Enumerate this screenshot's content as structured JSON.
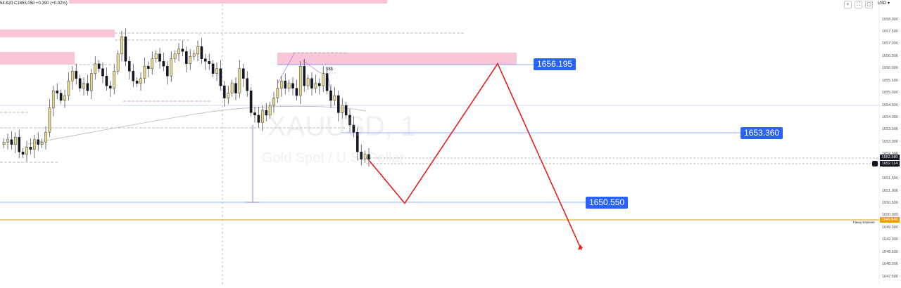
{
  "header": {
    "ohlc_text": "54.620 C1655.050 +0.390 (+0.02%)",
    "currency": "USD ▾",
    "window_buttons": [
      "+",
      "⛶",
      "▢"
    ]
  },
  "watermark": {
    "symbol": "XAUUSD, 1",
    "description": "Gold Spot / U.S. Dollar"
  },
  "annotations": {
    "sss_label": "$$$",
    "key_level_label": "Fakey Keylevel"
  },
  "colors": {
    "zone_pink": "#f9c5d8",
    "level_blue": "#2962ff",
    "key_level_gold": "#f29b0e",
    "projection_red": "#e81c1c",
    "candle_black": "#131722",
    "candle_yellow": "#e8d989"
  },
  "chart_data": {
    "type": "candlestick",
    "symbol": "XAUUSD",
    "timeframe": "1",
    "ylim": [
      1647.5,
      1658.5
    ],
    "yticks": [
      "1647.500",
      "1648.000",
      "1648.500",
      "1649.000",
      "1649.500",
      "1650.000",
      "1650.500",
      "1651.000",
      "1651.500",
      "1652.000",
      "1652.500",
      "1653.000",
      "1653.500",
      "1654.000",
      "1654.500",
      "1655.000",
      "1655.500",
      "1656.000",
      "1656.500",
      "1657.000",
      "1657.500",
      "1658.000"
    ],
    "price_levels": [
      {
        "label": "1656.195",
        "value": 1656.195
      },
      {
        "label": "1653.360",
        "value": 1653.36
      },
      {
        "label": "1650.550",
        "value": 1650.55
      }
    ],
    "key_level": {
      "label": "1649.840",
      "value": 1649.84
    },
    "current_prices": [
      "1652.380",
      "1652.114"
    ],
    "projected_path": [
      1652.3,
      1650.5,
      1656.2,
      1648.6
    ],
    "candles_close": [
      1653.0,
      1653.1,
      1652.9,
      1653.2,
      1652.6,
      1652.5,
      1652.8,
      1652.7,
      1653.1,
      1652.9,
      1653.0,
      1653.4,
      1654.4,
      1655.1,
      1655.0,
      1654.7,
      1654.9,
      1655.5,
      1655.9,
      1655.6,
      1655.2,
      1655.4,
      1655.1,
      1655.8,
      1656.2,
      1656.0,
      1655.7,
      1655.3,
      1655.2,
      1655.9,
      1656.6,
      1657.3,
      1656.3,
      1655.9,
      1655.5,
      1655.4,
      1655.6,
      1656.1,
      1656.0,
      1656.4,
      1656.6,
      1656.3,
      1656.1,
      1655.7,
      1656.4,
      1656.6,
      1656.8,
      1656.7,
      1656.2,
      1656.5,
      1656.6,
      1656.9,
      1656.4,
      1656.3,
      1656.2,
      1655.8,
      1656.0,
      1655.3,
      1654.8,
      1655.0,
      1655.4,
      1655.0,
      1656.0,
      1655.6,
      1655.1,
      1654.2,
      1654.1,
      1653.8,
      1654.3,
      1654.1,
      1654.5,
      1654.8,
      1655.2,
      1655.5,
      1655.2,
      1655.4,
      1655.2,
      1654.9,
      1656.1,
      1655.3,
      1655.6,
      1655.2,
      1655.4,
      1655.3,
      1655.8,
      1655.1,
      1654.7,
      1654.9,
      1654.2,
      1654.5,
      1654.1,
      1653.7,
      1653.4,
      1652.6,
      1652.3,
      1652.5,
      1652.3
    ]
  }
}
